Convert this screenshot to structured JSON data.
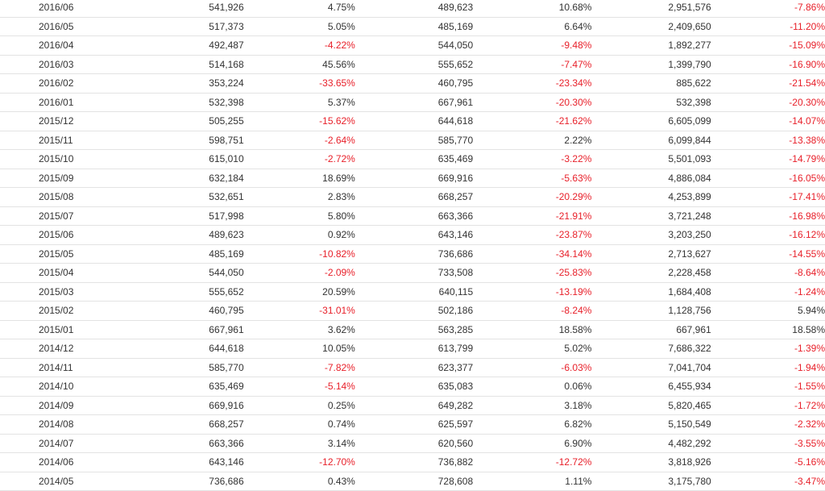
{
  "colors": {
    "negative": "#e8202a",
    "positive": "#333333"
  },
  "rows": [
    [
      "2016/06",
      "541,926",
      "4.75%",
      "489,623",
      "10.68%",
      "2,951,576",
      "-7.86%"
    ],
    [
      "2016/05",
      "517,373",
      "5.05%",
      "485,169",
      "6.64%",
      "2,409,650",
      "-11.20%"
    ],
    [
      "2016/04",
      "492,487",
      "-4.22%",
      "544,050",
      "-9.48%",
      "1,892,277",
      "-15.09%"
    ],
    [
      "2016/03",
      "514,168",
      "45.56%",
      "555,652",
      "-7.47%",
      "1,399,790",
      "-16.90%"
    ],
    [
      "2016/02",
      "353,224",
      "-33.65%",
      "460,795",
      "-23.34%",
      "885,622",
      "-21.54%"
    ],
    [
      "2016/01",
      "532,398",
      "5.37%",
      "667,961",
      "-20.30%",
      "532,398",
      "-20.30%"
    ],
    [
      "2015/12",
      "505,255",
      "-15.62%",
      "644,618",
      "-21.62%",
      "6,605,099",
      "-14.07%"
    ],
    [
      "2015/11",
      "598,751",
      "-2.64%",
      "585,770",
      "2.22%",
      "6,099,844",
      "-13.38%"
    ],
    [
      "2015/10",
      "615,010",
      "-2.72%",
      "635,469",
      "-3.22%",
      "5,501,093",
      "-14.79%"
    ],
    [
      "2015/09",
      "632,184",
      "18.69%",
      "669,916",
      "-5.63%",
      "4,886,084",
      "-16.05%"
    ],
    [
      "2015/08",
      "532,651",
      "2.83%",
      "668,257",
      "-20.29%",
      "4,253,899",
      "-17.41%"
    ],
    [
      "2015/07",
      "517,998",
      "5.80%",
      "663,366",
      "-21.91%",
      "3,721,248",
      "-16.98%"
    ],
    [
      "2015/06",
      "489,623",
      "0.92%",
      "643,146",
      "-23.87%",
      "3,203,250",
      "-16.12%"
    ],
    [
      "2015/05",
      "485,169",
      "-10.82%",
      "736,686",
      "-34.14%",
      "2,713,627",
      "-14.55%"
    ],
    [
      "2015/04",
      "544,050",
      "-2.09%",
      "733,508",
      "-25.83%",
      "2,228,458",
      "-8.64%"
    ],
    [
      "2015/03",
      "555,652",
      "20.59%",
      "640,115",
      "-13.19%",
      "1,684,408",
      "-1.24%"
    ],
    [
      "2015/02",
      "460,795",
      "-31.01%",
      "502,186",
      "-8.24%",
      "1,128,756",
      "5.94%"
    ],
    [
      "2015/01",
      "667,961",
      "3.62%",
      "563,285",
      "18.58%",
      "667,961",
      "18.58%"
    ],
    [
      "2014/12",
      "644,618",
      "10.05%",
      "613,799",
      "5.02%",
      "7,686,322",
      "-1.39%"
    ],
    [
      "2014/11",
      "585,770",
      "-7.82%",
      "623,377",
      "-6.03%",
      "7,041,704",
      "-1.94%"
    ],
    [
      "2014/10",
      "635,469",
      "-5.14%",
      "635,083",
      "0.06%",
      "6,455,934",
      "-1.55%"
    ],
    [
      "2014/09",
      "669,916",
      "0.25%",
      "649,282",
      "3.18%",
      "5,820,465",
      "-1.72%"
    ],
    [
      "2014/08",
      "668,257",
      "0.74%",
      "625,597",
      "6.82%",
      "5,150,549",
      "-2.32%"
    ],
    [
      "2014/07",
      "663,366",
      "3.14%",
      "620,560",
      "6.90%",
      "4,482,292",
      "-3.55%"
    ],
    [
      "2014/06",
      "643,146",
      "-12.70%",
      "736,882",
      "-12.72%",
      "3,818,926",
      "-5.16%"
    ],
    [
      "2014/05",
      "736,686",
      "0.43%",
      "728,608",
      "1.11%",
      "3,175,780",
      "-3.47%"
    ]
  ]
}
